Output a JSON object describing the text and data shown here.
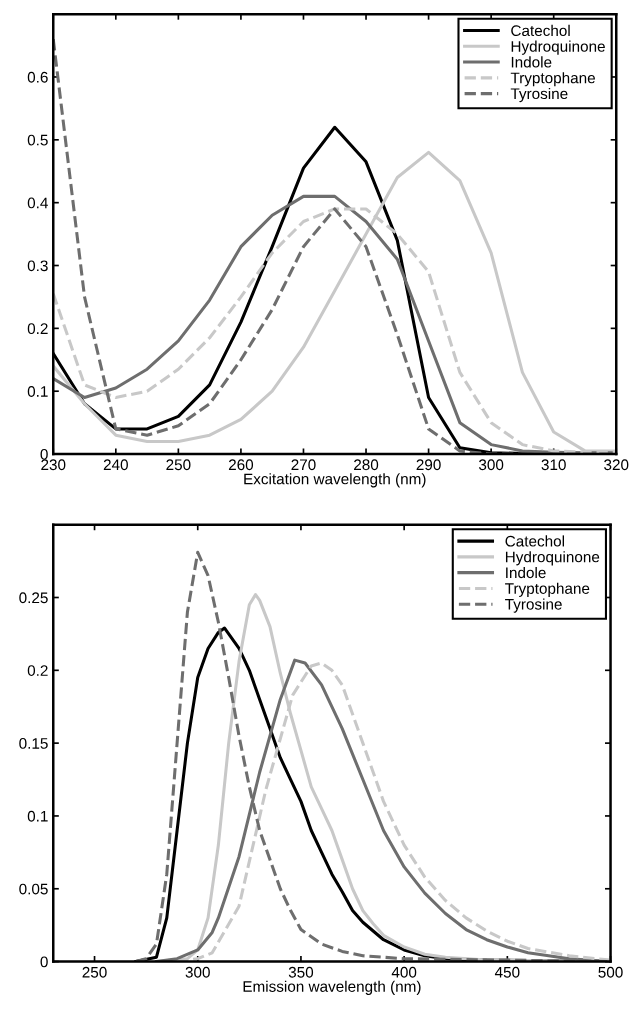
{
  "chart_data": [
    {
      "type": "line",
      "xlabel": "Excitation wavelength (nm)",
      "xlim": [
        230,
        320
      ],
      "xticks": [
        230,
        240,
        250,
        260,
        270,
        280,
        290,
        300,
        310,
        320
      ],
      "ylim": [
        0,
        0.7
      ],
      "yticks": [
        0,
        0.1,
        0.2,
        0.3,
        0.4,
        0.5,
        0.6
      ],
      "legend": "top right",
      "grid": false,
      "x": [
        230,
        235,
        240,
        245,
        250,
        255,
        260,
        265,
        270,
        275,
        280,
        285,
        290,
        295,
        300,
        305,
        310,
        315,
        320
      ],
      "series": [
        {
          "name": "Catechol",
          "color": "#000000",
          "line_style": "solid",
          "values": [
            0.16,
            0.08,
            0.04,
            0.04,
            0.06,
            0.11,
            0.21,
            0.33,
            0.455,
            0.52,
            0.465,
            0.34,
            0.09,
            0.01,
            0.002,
            0.001,
            0,
            0,
            0
          ]
        },
        {
          "name": "Hydroquinone",
          "color": "#c8c8c8",
          "line_style": "solid",
          "values": [
            0.14,
            0.08,
            0.03,
            0.02,
            0.02,
            0.03,
            0.055,
            0.1,
            0.17,
            0.26,
            0.35,
            0.44,
            0.48,
            0.435,
            0.32,
            0.13,
            0.035,
            0.005,
            0.005
          ]
        },
        {
          "name": "Indole",
          "color": "#6e6e6e",
          "line_style": "solid",
          "values": [
            0.12,
            0.09,
            0.105,
            0.135,
            0.18,
            0.245,
            0.33,
            0.38,
            0.41,
            0.41,
            0.37,
            0.31,
            0.18,
            0.05,
            0.015,
            0.005,
            0.003,
            0.002,
            0.002
          ]
        },
        {
          "name": "Tryptophane",
          "color": "#c8c8c8",
          "line_style": "dashed",
          "values": [
            0.255,
            0.11,
            0.09,
            0.1,
            0.135,
            0.185,
            0.25,
            0.32,
            0.37,
            0.39,
            0.39,
            0.35,
            0.29,
            0.13,
            0.05,
            0.015,
            0.005,
            0.003,
            0.003
          ]
        },
        {
          "name": "Tyrosine",
          "color": "#6e6e6e",
          "line_style": "dashed",
          "values": [
            0.66,
            0.25,
            0.04,
            0.03,
            0.045,
            0.08,
            0.15,
            0.23,
            0.33,
            0.39,
            0.33,
            0.19,
            0.04,
            0.005,
            0,
            0,
            0,
            0,
            0
          ]
        }
      ]
    },
    {
      "type": "line",
      "xlabel": "Emission wavelength (nm)",
      "xlim": [
        230,
        500
      ],
      "xticks": [
        250,
        300,
        350,
        400,
        450,
        500
      ],
      "ylim": [
        0,
        0.3
      ],
      "yticks": [
        0,
        0.05,
        0.1,
        0.15,
        0.2,
        0.25
      ],
      "legend": "top right",
      "grid": false,
      "series": [
        {
          "name": "Catechol",
          "color": "#000000",
          "line_style": "solid",
          "x": [
            270,
            280,
            285,
            290,
            295,
            300,
            305,
            310,
            313,
            320,
            325,
            330,
            335,
            340,
            345,
            350,
            355,
            360,
            365,
            370,
            375,
            380,
            390,
            400,
            410,
            420,
            440,
            500
          ],
          "values": [
            0,
            0.003,
            0.03,
            0.09,
            0.15,
            0.195,
            0.215,
            0.226,
            0.229,
            0.215,
            0.2,
            0.18,
            0.16,
            0.14,
            0.125,
            0.11,
            0.09,
            0.075,
            0.06,
            0.048,
            0.035,
            0.027,
            0.015,
            0.008,
            0.004,
            0.002,
            0.001,
            0
          ]
        },
        {
          "name": "Hydroquinone",
          "color": "#c8c8c8",
          "line_style": "solid",
          "x": [
            280,
            295,
            300,
            305,
            310,
            315,
            320,
            325,
            328,
            330,
            335,
            340,
            345,
            350,
            355,
            360,
            365,
            370,
            375,
            380,
            385,
            390,
            400,
            410,
            420,
            440,
            500
          ],
          "values": [
            0,
            0.002,
            0.008,
            0.03,
            0.08,
            0.15,
            0.206,
            0.245,
            0.252,
            0.248,
            0.23,
            0.198,
            0.17,
            0.145,
            0.12,
            0.105,
            0.09,
            0.07,
            0.05,
            0.035,
            0.026,
            0.018,
            0.01,
            0.005,
            0.003,
            0.001,
            0
          ]
        },
        {
          "name": "Indole",
          "color": "#6e6e6e",
          "line_style": "solid",
          "x": [
            280,
            290,
            300,
            307,
            310,
            320,
            330,
            340,
            347,
            352,
            360,
            370,
            380,
            390,
            400,
            410,
            420,
            430,
            440,
            450,
            460,
            480,
            500
          ],
          "values": [
            0,
            0.002,
            0.008,
            0.02,
            0.03,
            0.072,
            0.13,
            0.18,
            0.207,
            0.205,
            0.19,
            0.16,
            0.125,
            0.09,
            0.065,
            0.047,
            0.033,
            0.022,
            0.015,
            0.01,
            0.006,
            0.002,
            0
          ]
        },
        {
          "name": "Tryptophane",
          "color": "#c8c8c8",
          "line_style": "dashed",
          "x": [
            290,
            300,
            307,
            320,
            333,
            346,
            355,
            360,
            365,
            370,
            375,
            380,
            390,
            400,
            410,
            420,
            430,
            440,
            450,
            460,
            480,
            500
          ],
          "values": [
            0,
            0.002,
            0.006,
            0.038,
            0.118,
            0.183,
            0.203,
            0.205,
            0.2,
            0.19,
            0.17,
            0.15,
            0.11,
            0.08,
            0.058,
            0.042,
            0.03,
            0.021,
            0.014,
            0.009,
            0.004,
            0.001
          ]
        },
        {
          "name": "Tyrosine",
          "color": "#6e6e6e",
          "line_style": "dashed",
          "x": [
            270,
            275,
            280,
            285,
            290,
            295,
            300,
            305,
            310,
            315,
            320,
            325,
            330,
            335,
            340,
            345,
            350,
            360,
            370,
            380,
            400,
            450,
            500
          ],
          "values": [
            0,
            0.002,
            0.012,
            0.06,
            0.15,
            0.24,
            0.281,
            0.265,
            0.233,
            0.195,
            0.155,
            0.12,
            0.09,
            0.07,
            0.05,
            0.035,
            0.022,
            0.012,
            0.007,
            0.004,
            0.002,
            0.001,
            0
          ]
        }
      ]
    }
  ]
}
